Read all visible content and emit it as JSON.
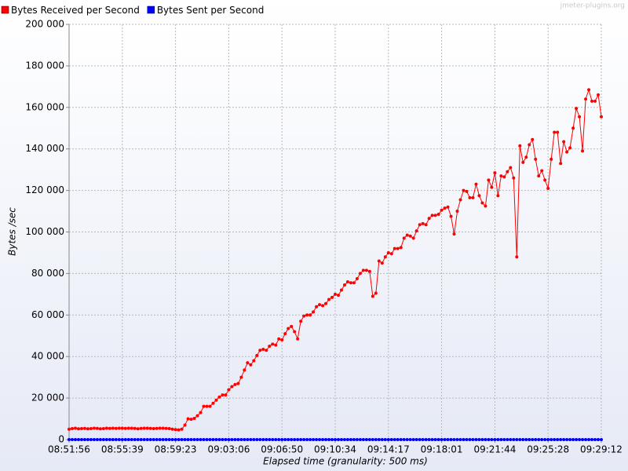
{
  "chart_data": {
    "type": "line",
    "watermark": "jmeter-plugins.org",
    "xlabel": "Elapsed time (granularity: 500 ms)",
    "ylabel": "Bytes /sec",
    "categories": [
      "08:51:56",
      null,
      null,
      null,
      null,
      null,
      null,
      null,
      null,
      null,
      null,
      null,
      null,
      null,
      null,
      null,
      null,
      "08:55:39",
      null,
      null,
      null,
      null,
      null,
      null,
      null,
      null,
      null,
      null,
      null,
      null,
      null,
      null,
      null,
      null,
      "08:59:23",
      null,
      null,
      null,
      null,
      null,
      null,
      null,
      null,
      null,
      null,
      null,
      null,
      null,
      null,
      null,
      null,
      "09:03:06",
      null,
      null,
      null,
      null,
      null,
      null,
      null,
      null,
      null,
      null,
      null,
      null,
      null,
      null,
      null,
      null,
      "09:06:50",
      null,
      null,
      null,
      null,
      null,
      null,
      null,
      null,
      null,
      null,
      null,
      null,
      null,
      null,
      null,
      null,
      "09:10:34",
      null,
      null,
      null,
      null,
      null,
      null,
      null,
      null,
      null,
      null,
      null,
      null,
      null,
      null,
      null,
      null,
      "09:14:17",
      null,
      null,
      null,
      null,
      null,
      null,
      null,
      null,
      null,
      null,
      null,
      null,
      null,
      null,
      null,
      null,
      "09:18:01",
      null,
      null,
      null,
      null,
      null,
      null,
      null,
      null,
      null,
      null,
      null,
      null,
      null,
      null,
      null,
      null,
      "09:21:44",
      null,
      null,
      null,
      null,
      null,
      null,
      null,
      null,
      null,
      null,
      null,
      null,
      null,
      null,
      null,
      null,
      "09:25:28",
      null,
      null,
      null,
      null,
      null,
      null,
      null,
      null,
      null,
      null,
      null,
      null,
      null,
      null,
      null,
      null,
      "09:29:12"
    ],
    "series": [
      {
        "name": "Bytes Received per Second",
        "color": "#ff0000",
        "values": [
          5000,
          5300,
          5500,
          5200,
          5300,
          5400,
          5200,
          5300,
          5500,
          5400,
          5200,
          5300,
          5500,
          5400,
          5500,
          5400,
          5500,
          5500,
          5400,
          5500,
          5500,
          5400,
          5200,
          5400,
          5500,
          5500,
          5400,
          5300,
          5400,
          5500,
          5500,
          5400,
          5300,
          5000,
          4800,
          4700,
          5000,
          7000,
          10000,
          9800,
          10200,
          11500,
          13000,
          16000,
          16000,
          16000,
          17500,
          19000,
          20500,
          21500,
          21500,
          24000,
          25500,
          26500,
          27000,
          30000,
          33500,
          37000,
          36000,
          38000,
          40500,
          43000,
          43500,
          43000,
          45000,
          46000,
          45500,
          48500,
          48000,
          51000,
          53500,
          54500,
          52000,
          48500,
          57000,
          59500,
          60000,
          60000,
          61500,
          64000,
          65000,
          64500,
          65500,
          67500,
          68500,
          70000,
          69500,
          72000,
          74500,
          76000,
          75500,
          75500,
          77500,
          80000,
          81500,
          81500,
          81000,
          69000,
          70500,
          86000,
          85000,
          88000,
          90000,
          89500,
          92000,
          92000,
          92500,
          97000,
          98500,
          98000,
          97000,
          100500,
          103500,
          104000,
          103500,
          106500,
          108000,
          108000,
          108500,
          110500,
          111500,
          112000,
          107500,
          99000,
          110000,
          115500,
          120000,
          119500,
          116500,
          116500,
          123000,
          117500,
          114000,
          112500,
          125000,
          121500,
          128500,
          117500,
          127000,
          126500,
          129000,
          131000,
          126000,
          88000,
          141500,
          133500,
          136000,
          142000,
          144500,
          135000,
          127000,
          129500,
          125000,
          121000,
          135000,
          148000,
          148000,
          133000,
          143500,
          138500,
          140500,
          150000,
          159500,
          155500,
          139000,
          164000,
          168500,
          163000,
          163000,
          166000,
          155500
        ]
      },
      {
        "name": "Bytes Sent per Second",
        "color": "#0000ff",
        "values": [
          0,
          0,
          0,
          0,
          0,
          0,
          0,
          0,
          0,
          0,
          0,
          0,
          0,
          0,
          0,
          0,
          0,
          0,
          0,
          0,
          0,
          0,
          0,
          0,
          0,
          0,
          0,
          0,
          0,
          0,
          0,
          0,
          0,
          0,
          0,
          0,
          0,
          0,
          0,
          0,
          0,
          0,
          0,
          0,
          0,
          0,
          0,
          0,
          0,
          0,
          0,
          0,
          0,
          0,
          0,
          0,
          0,
          0,
          0,
          0,
          0,
          0,
          0,
          0,
          0,
          0,
          0,
          0,
          0,
          0,
          0,
          0,
          0,
          0,
          0,
          0,
          0,
          0,
          0,
          0,
          0,
          0,
          0,
          0,
          0,
          0,
          0,
          0,
          0,
          0,
          0,
          0,
          0,
          0,
          0,
          0,
          0,
          0,
          0,
          0,
          0,
          0,
          0,
          0,
          0,
          0,
          0,
          0,
          0,
          0,
          0,
          0,
          0,
          0,
          0,
          0,
          0,
          0,
          0,
          0,
          0,
          0,
          0,
          0,
          0,
          0,
          0,
          0,
          0,
          0,
          0,
          0,
          0,
          0,
          0,
          0,
          0,
          0,
          0,
          0,
          0,
          0,
          0,
          0,
          0,
          0,
          0,
          0,
          0,
          0,
          0,
          0,
          0,
          0,
          0,
          0,
          0,
          0,
          0,
          0,
          0,
          0,
          0,
          0,
          0,
          0,
          0,
          0,
          0,
          0,
          0
        ]
      }
    ],
    "ylim": [
      0,
      200000
    ],
    "yticks": [
      0,
      {
        "value": 20000,
        "label": "20 000"
      },
      {
        "value": 40000,
        "label": "40 000"
      },
      {
        "value": 60000,
        "label": "60 000"
      },
      {
        "value": 80000,
        "label": "80 000"
      },
      {
        "value": 100000,
        "label": "100 000"
      },
      {
        "value": 120000,
        "label": "120 000"
      },
      {
        "value": 140000,
        "label": "140 000"
      },
      {
        "value": 160000,
        "label": "160 000"
      },
      {
        "value": 180000,
        "label": "180 000"
      },
      {
        "value": 200000,
        "label": "200 000"
      }
    ],
    "grid": true,
    "legend": "top-left"
  }
}
